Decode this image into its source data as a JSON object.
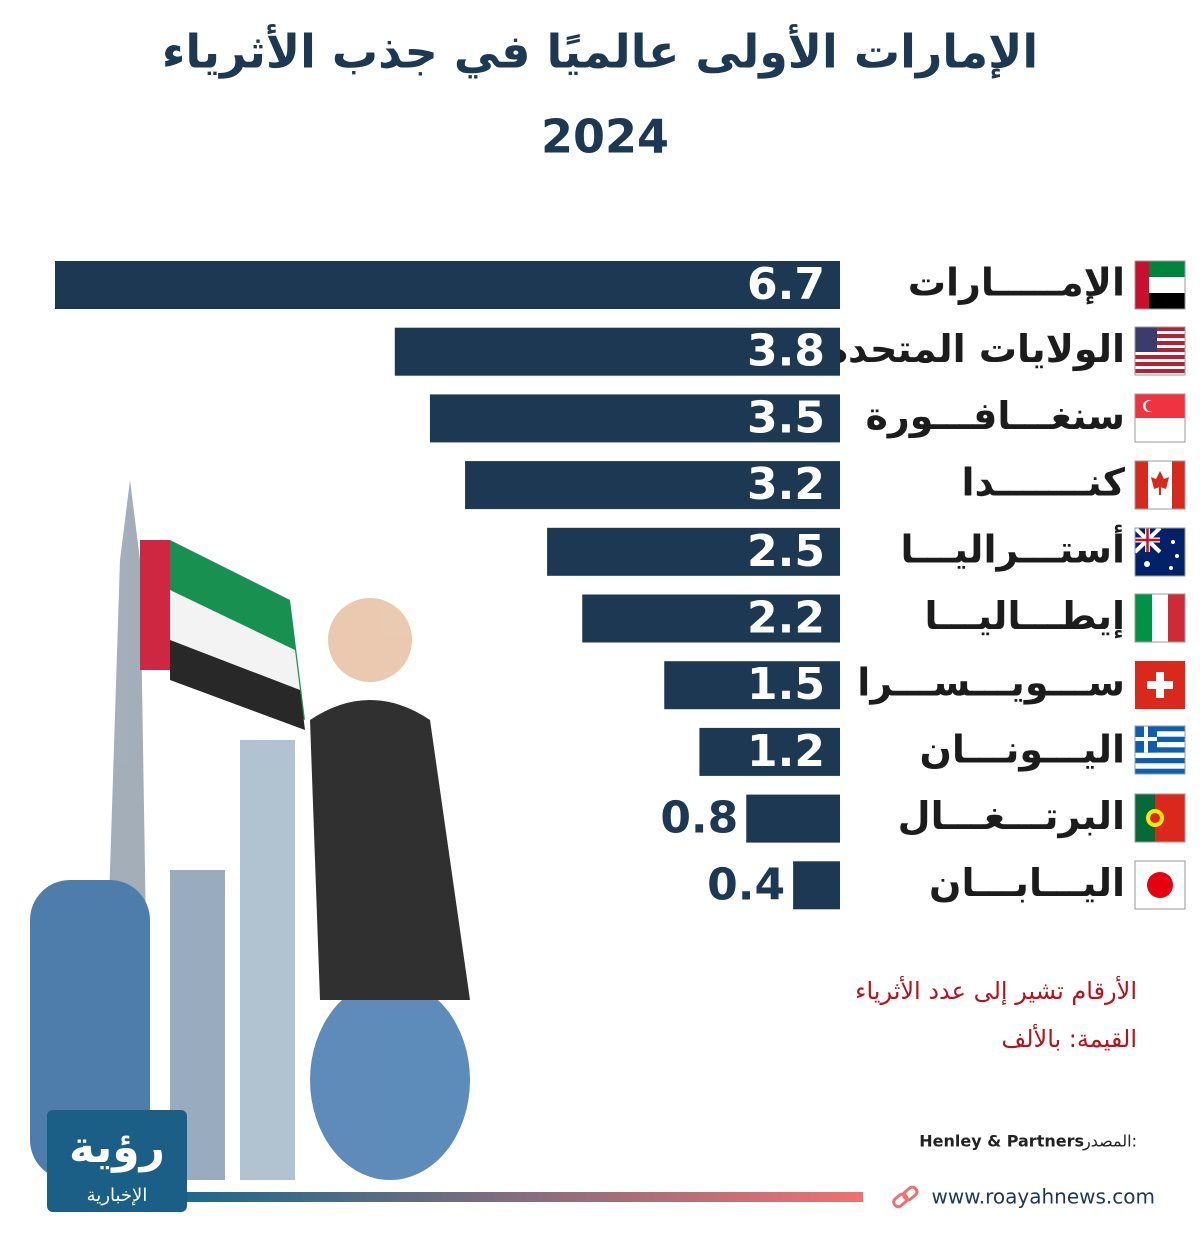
{
  "chart_data": {
    "type": "bar",
    "orientation": "horizontal",
    "title": "الإمارات الأولى عالميًا في جذب الأثرياء",
    "subtitle": "2024",
    "categories": [
      "الإمـــــارات",
      "الولايات المتحدة",
      "سنغـــافـــورة",
      "كنـــــــدا",
      "أستـــراليـــا",
      "إيطـــاليـــا",
      "ســـويـــســـرا",
      "اليـــونـــان",
      "البرتـــغـــال",
      "اليـــابـــان"
    ],
    "values": [
      6.7,
      3.8,
      3.5,
      3.2,
      2.5,
      2.2,
      1.5,
      1.2,
      0.8,
      0.4
    ],
    "color": "#1c3853",
    "notes": [
      "الأرقام تشير إلى عدد الأثرياء",
      "القيمة: بالألف"
    ],
    "source_label": "المصدر:",
    "source": "Henley & Partners",
    "website": "www.roayahnews.com",
    "logo": {
      "name": "رؤية",
      "tagline": "الإخبارية"
    }
  }
}
